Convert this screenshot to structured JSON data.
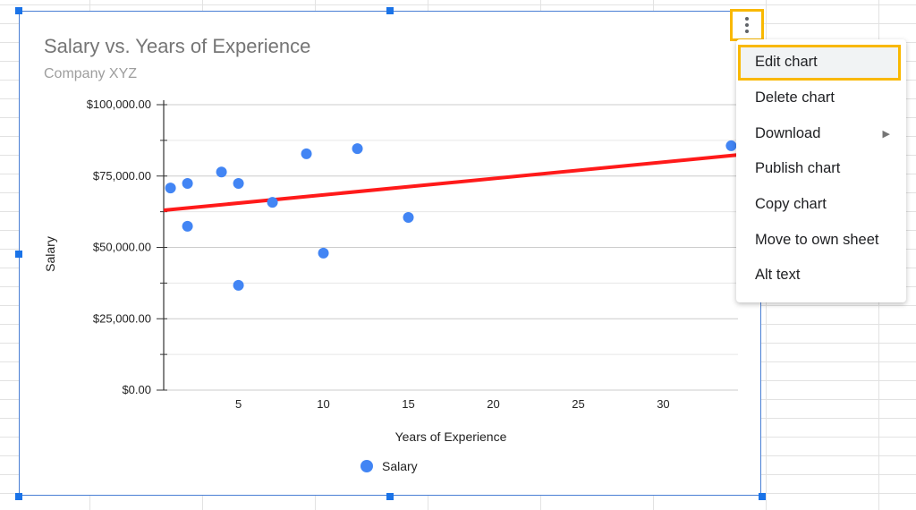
{
  "chart": {
    "title": "Salary vs. Years of Experience",
    "subtitle": "Company XYZ"
  },
  "chart_data": {
    "type": "scatter",
    "title": "Salary vs. Years of Experience",
    "subtitle": "Company XYZ",
    "xlabel": "Years of Experience",
    "ylabel": "Salary",
    "xlim": [
      0.6,
      34.4
    ],
    "ylim": [
      0,
      100000
    ],
    "x_ticks": [
      5,
      10,
      15,
      20,
      25,
      30
    ],
    "x_tick_labels": [
      "5",
      "10",
      "15",
      "20",
      "25",
      "30"
    ],
    "y_ticks": [
      0,
      25000,
      50000,
      75000,
      100000
    ],
    "y_tick_labels": [
      "$0.00",
      "$25,000.00",
      "$50,000.00",
      "$75,000.00",
      "$100,000.00"
    ],
    "grid": true,
    "legend": "bottom",
    "series": [
      {
        "name": "Salary",
        "color": "#4285f4",
        "x": [
          1,
          2,
          2,
          4,
          5,
          5,
          7,
          9,
          10,
          12,
          15,
          34
        ],
        "y": [
          70800,
          72400,
          57400,
          76400,
          72400,
          36700,
          65800,
          82800,
          48000,
          84600,
          60500,
          85600
        ]
      }
    ],
    "trendline": {
      "type": "linear",
      "color": "#ff1a1a",
      "x": [
        0.6,
        34.4
      ],
      "y": [
        63000,
        82400
      ]
    }
  },
  "menu": {
    "items": [
      {
        "label": "Edit chart"
      },
      {
        "label": "Delete chart"
      },
      {
        "label": "Download",
        "arrow": "▶"
      },
      {
        "label": "Publish chart"
      },
      {
        "label": "Copy chart"
      },
      {
        "label": "Move to own sheet"
      },
      {
        "label": "Alt text"
      }
    ]
  },
  "colors": {
    "highlight": "#f9b800",
    "selection": "#1a73e8"
  }
}
